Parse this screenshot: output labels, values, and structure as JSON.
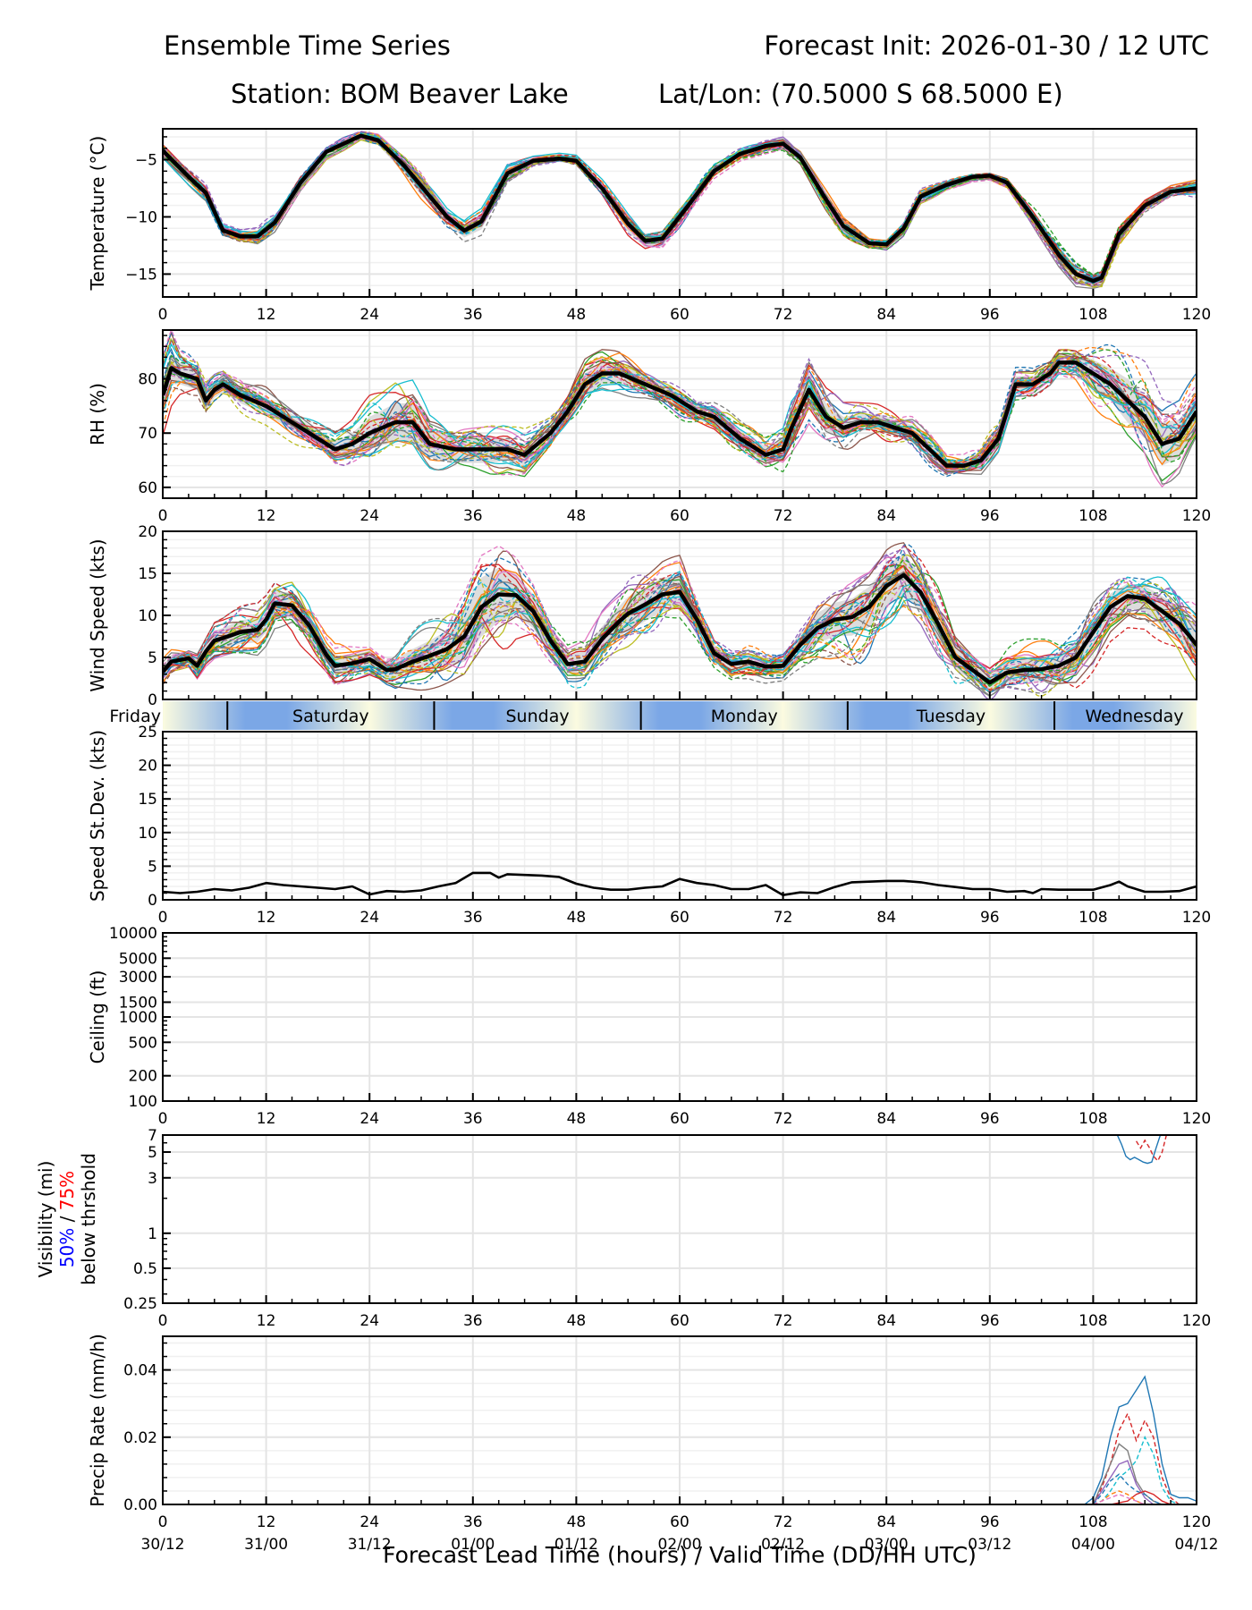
{
  "header": {
    "title_left": "Ensemble Time Series",
    "title_right": "Forecast Init: 2026-01-30 / 12 UTC",
    "station": "Station: BOM Beaver Lake",
    "latlon": "Lat/Lon: (70.5000 S 68.5000 E)"
  },
  "xaxis": {
    "label": "Forecast Lead Time (hours) / Valid Time (DD/HH UTC)",
    "range": [
      0,
      120
    ],
    "ticks": [
      0,
      12,
      24,
      36,
      48,
      60,
      72,
      84,
      96,
      108,
      120
    ],
    "tick_labels": [
      "0",
      "12",
      "24",
      "36",
      "48",
      "60",
      "72",
      "84",
      "96",
      "108",
      "120"
    ],
    "valid_labels": [
      "30/12",
      "31/00",
      "31/12",
      "01/00",
      "01/12",
      "02/00",
      "02/12",
      "03/00",
      "03/12",
      "04/00",
      "04/12"
    ]
  },
  "day_strip": {
    "days": [
      {
        "label": "Friday",
        "start": 0,
        "end": 7.5
      },
      {
        "label": "Saturday",
        "start": 7.5,
        "end": 31.5
      },
      {
        "label": "Sunday",
        "start": 31.5,
        "end": 55.5
      },
      {
        "label": "Monday",
        "start": 55.5,
        "end": 79.5
      },
      {
        "label": "Tuesday",
        "start": 79.5,
        "end": 103.5
      },
      {
        "label": "Wednesday",
        "start": 103.5,
        "end": 120
      }
    ],
    "night_color": "#7ba7e6",
    "day_color": "#fbfbe0"
  },
  "colors": {
    "mean": "#000000",
    "spread": "#d9d9d9",
    "members": [
      "#1f77b4",
      "#ff7f0e",
      "#2ca02c",
      "#d62728",
      "#9467bd",
      "#8c564b",
      "#e377c2",
      "#7f7f7f",
      "#bcbd22",
      "#17becf"
    ],
    "vis50": "#0000ff",
    "vis75": "#ff0000"
  },
  "chart_data": [
    {
      "type": "line",
      "id": "temperature",
      "ylabel": "Temperature (°C)",
      "ylim": [
        -17,
        -2.3
      ],
      "yticks": [
        -15,
        -10,
        -5
      ],
      "ytick_labels": [
        "−15",
        "−10",
        "−5"
      ],
      "grid": true,
      "x": [
        0,
        3,
        5,
        7,
        9,
        11,
        13,
        16,
        19,
        21,
        23,
        25,
        28,
        30,
        33,
        35,
        37,
        40,
        43,
        46,
        48,
        51,
        54,
        56,
        58,
        61,
        64,
        67,
        70,
        72,
        74,
        77,
        79,
        82,
        84,
        86,
        88,
        91,
        94,
        96,
        98,
        101,
        104,
        106,
        108,
        109,
        111,
        114,
        117,
        120
      ],
      "mean": [
        -4.2,
        -6.5,
        -7.9,
        -11.2,
        -11.7,
        -11.7,
        -10.5,
        -7.0,
        -4.3,
        -3.6,
        -2.9,
        -3.3,
        -5.5,
        -7.3,
        -10.0,
        -11.2,
        -10.4,
        -6.2,
        -5.1,
        -4.9,
        -5.1,
        -7.5,
        -10.6,
        -12.1,
        -11.9,
        -9.0,
        -6.0,
        -4.5,
        -3.8,
        -3.6,
        -4.8,
        -8.5,
        -10.8,
        -12.3,
        -12.4,
        -11.0,
        -8.2,
        -7.2,
        -6.5,
        -6.4,
        -7.0,
        -10.0,
        -13.3,
        -15.0,
        -15.6,
        -15.3,
        -11.5,
        -9.0,
        -7.8,
        -7.5
      ],
      "spread": [
        0.4,
        0.5,
        0.5,
        0.4,
        0.4,
        0.5,
        0.6,
        0.5,
        0.4,
        0.4,
        0.3,
        0.4,
        0.7,
        0.8,
        0.6,
        0.6,
        0.7,
        0.5,
        0.3,
        0.3,
        0.3,
        0.5,
        0.7,
        0.6,
        0.7,
        0.6,
        0.5,
        0.4,
        0.4,
        0.4,
        0.5,
        0.7,
        0.6,
        0.4,
        0.4,
        0.5,
        0.5,
        0.3,
        0.3,
        0.3,
        0.4,
        0.6,
        0.7,
        0.7,
        0.4,
        0.5,
        0.6,
        0.4,
        0.4,
        0.5
      ],
      "members_count": 30
    },
    {
      "type": "line",
      "id": "rh",
      "ylabel": "RH (%)",
      "ylim": [
        58,
        89
      ],
      "yticks": [
        60,
        70,
        80
      ],
      "ytick_labels": [
        "60",
        "70",
        "80"
      ],
      "grid": true,
      "x": [
        0,
        1,
        2,
        4,
        5,
        6,
        7,
        9,
        12,
        15,
        18,
        20,
        22,
        24,
        27,
        29,
        31,
        34,
        36,
        38,
        40,
        42,
        45,
        47,
        49,
        51,
        53,
        56,
        59,
        62,
        64,
        67,
        70,
        72,
        73,
        75,
        77,
        79,
        81,
        83,
        85,
        87,
        89,
        91,
        93,
        95,
        97,
        98,
        99,
        101,
        103,
        104,
        106,
        108,
        110,
        112,
        114,
        116,
        118,
        120
      ],
      "mean": [
        77,
        82,
        81,
        80,
        76,
        78,
        79,
        77,
        75,
        72,
        69,
        67,
        68,
        70,
        72,
        72,
        68,
        67,
        67,
        67,
        67,
        66,
        70,
        74,
        79,
        81,
        81,
        79,
        77,
        74,
        73,
        69,
        66,
        67,
        71,
        78,
        73,
        71,
        72,
        72,
        71,
        70,
        67,
        64,
        64,
        65,
        69,
        74,
        79,
        79,
        81,
        83,
        83,
        81,
        79,
        76,
        73,
        68,
        69,
        74
      ],
      "spread": [
        3,
        3,
        2,
        2,
        2,
        1.5,
        1.5,
        1.5,
        1.5,
        1.5,
        1.5,
        1.5,
        2,
        3,
        3.5,
        3.5,
        2.5,
        2.5,
        2.5,
        2.5,
        2,
        2,
        1.5,
        1.5,
        2,
        2,
        2,
        1.5,
        1.5,
        1.5,
        1.5,
        1.5,
        1.5,
        2,
        3,
        3,
        2.5,
        2,
        1.5,
        1.5,
        1.5,
        1.5,
        1.5,
        1,
        1,
        1.5,
        1.5,
        1.5,
        1.5,
        1.5,
        1.5,
        1.5,
        2,
        2.5,
        3,
        4,
        4,
        4,
        3.5,
        3
      ],
      "members_count": 30
    },
    {
      "type": "line",
      "id": "wind_speed",
      "ylabel": "Wind Speed (kts)",
      "ylim": [
        0,
        20
      ],
      "yticks": [
        0,
        5,
        10,
        15,
        20
      ],
      "ytick_labels": [
        "0",
        "5",
        "10",
        "15",
        "20"
      ],
      "grid": true,
      "x": [
        0,
        1,
        2,
        3,
        4,
        5,
        6,
        7,
        9,
        11,
        12,
        13,
        15,
        17,
        19,
        20,
        22,
        24,
        26,
        27,
        29,
        31,
        33,
        35,
        37,
        39,
        41,
        43,
        45,
        47,
        49,
        51,
        53,
        54,
        56,
        58,
        60,
        62,
        64,
        66,
        68,
        70,
        72,
        74,
        76,
        78,
        80,
        82,
        84,
        86,
        88,
        90,
        92,
        94,
        96,
        98,
        100,
        102,
        104,
        106,
        108,
        110,
        112,
        114,
        116,
        118,
        120
      ],
      "mean": [
        3.3,
        4.5,
        4.7,
        4.9,
        4.0,
        5.7,
        7.0,
        7.3,
        8.0,
        8.3,
        9.5,
        11.4,
        11.2,
        8.8,
        5.3,
        4.0,
        4.3,
        4.8,
        3.5,
        3.6,
        4.5,
        5.2,
        6.0,
        7.5,
        11.0,
        12.5,
        12.4,
        10.5,
        7.0,
        4.2,
        4.5,
        7.2,
        9.3,
        10.2,
        11.3,
        12.5,
        12.8,
        9.5,
        5.5,
        4.2,
        4.5,
        3.9,
        4.0,
        6.5,
        8.5,
        9.5,
        9.8,
        11.0,
        13.5,
        14.8,
        12.7,
        9.0,
        5.0,
        3.5,
        2.0,
        3.2,
        3.5,
        3.6,
        4.0,
        5.0,
        8.0,
        11.0,
        12.3,
        12.0,
        10.5,
        9.0,
        6.5
      ],
      "spread": [
        0.8,
        0.8,
        0.8,
        0.8,
        1,
        1,
        1.2,
        1.2,
        1.4,
        1.5,
        1.5,
        1.5,
        1.5,
        1.4,
        1,
        1,
        1,
        1,
        1,
        1.2,
        1.5,
        1.8,
        2.2,
        3,
        3.5,
        3.2,
        2.5,
        2,
        1.5,
        1.2,
        1.2,
        1.5,
        1.8,
        2,
        2,
        2,
        2,
        1.5,
        1,
        1,
        1,
        1,
        1,
        1.5,
        1.8,
        2,
        2.2,
        2.4,
        2.5,
        2.5,
        2.2,
        2,
        1.5,
        1.2,
        1,
        1.2,
        1.4,
        1.5,
        1.6,
        1.8,
        1.8,
        1.6,
        1.5,
        1.5,
        1.8,
        2,
        2
      ],
      "members_count": 30
    },
    {
      "type": "line",
      "id": "speed_stdev",
      "ylabel": "Speed St.Dev. (kts)",
      "ylim": [
        0,
        25
      ],
      "yticks": [
        0,
        5,
        10,
        15,
        20,
        25
      ],
      "ytick_labels": [
        "0",
        "5",
        "10",
        "15",
        "20",
        "25"
      ],
      "grid": true,
      "x": [
        0,
        2,
        4,
        6,
        8,
        10,
        12,
        14,
        16,
        18,
        20,
        22,
        24,
        26,
        28,
        30,
        32,
        34,
        36,
        38,
        39,
        40,
        42,
        44,
        46,
        48,
        50,
        52,
        54,
        56,
        58,
        60,
        62,
        64,
        66,
        68,
        70,
        72,
        74,
        76,
        78,
        80,
        84,
        86,
        88,
        90,
        92,
        94,
        96,
        98,
        100,
        101,
        102,
        104,
        106,
        108,
        110,
        111,
        112,
        114,
        116,
        118,
        120
      ],
      "values": [
        1.2,
        1.0,
        1.2,
        1.6,
        1.4,
        1.8,
        2.5,
        2.2,
        2.0,
        1.8,
        1.6,
        2.0,
        0.8,
        1.3,
        1.2,
        1.4,
        2.0,
        2.5,
        4.0,
        4.0,
        3.3,
        3.8,
        3.7,
        3.6,
        3.4,
        2.4,
        1.8,
        1.5,
        1.5,
        1.8,
        2.0,
        3.1,
        2.5,
        2.2,
        1.6,
        1.6,
        2.2,
        0.7,
        1.1,
        1.0,
        1.9,
        2.6,
        2.8,
        2.8,
        2.6,
        2.2,
        1.9,
        1.6,
        1.6,
        1.2,
        1.3,
        1.0,
        1.6,
        1.5,
        1.5,
        1.5,
        2.2,
        2.7,
        2.0,
        1.2,
        1.2,
        1.3,
        2.0
      ]
    },
    {
      "type": "line",
      "id": "ceiling",
      "ylabel": "Ceiling (ft)",
      "yscale": "log",
      "ylim": [
        100,
        10000
      ],
      "yticks": [
        100,
        200,
        500,
        1000,
        1500,
        3000,
        5000,
        10000
      ],
      "ytick_labels": [
        "100",
        "200",
        "500",
        "1000",
        "1500",
        "3000",
        "5000",
        "10000"
      ],
      "grid": true,
      "series": []
    },
    {
      "type": "line",
      "id": "visibility",
      "ylabel_lines": [
        "Visibility (mi)",
        "below thrshold"
      ],
      "ylabel_pct50": "50%",
      "ylabel_sep": " / ",
      "ylabel_pct75": "75%",
      "yscale": "log",
      "ylim": [
        0.25,
        7
      ],
      "yticks": [
        0.25,
        0.5,
        1,
        3,
        5,
        7
      ],
      "ytick_labels": [
        "0.25",
        "0.5",
        "1",
        "3",
        "5",
        "7"
      ],
      "grid": true,
      "series": [
        {
          "name": "50% below threshold",
          "style": "solid",
          "x": [
            110.8,
            111.3,
            111.8,
            112.3,
            112.8,
            113.3,
            113.8,
            114.3,
            114.8,
            115.3,
            115.8
          ],
          "values": [
            7.0,
            5.8,
            4.6,
            4.3,
            4.5,
            4.3,
            4.1,
            4.0,
            4.1,
            5.4,
            7.0
          ]
        },
        {
          "name": "75% below threshold",
          "style": "dashed",
          "x": [
            113.0,
            113.5,
            114.0,
            114.5,
            115.0,
            115.5,
            116.0,
            116.5
          ],
          "values": [
            6.2,
            5.4,
            6.3,
            5.5,
            4.6,
            4.2,
            5.0,
            7.0
          ]
        }
      ]
    },
    {
      "type": "line",
      "id": "precip_rate",
      "ylabel": "Precip Rate (mm/h)",
      "ylim": [
        0,
        0.05
      ],
      "yticks": [
        0,
        0.02,
        0.04
      ],
      "ytick_labels": [
        "0.00",
        "0.02",
        "0.04"
      ],
      "grid": true,
      "series": [
        {
          "name": "member-1",
          "style": "solid",
          "color_index": 0,
          "x": [
            107,
            108,
            109,
            110,
            111,
            112,
            113,
            114,
            115,
            116,
            117,
            118,
            119,
            120
          ],
          "values": [
            0,
            0.002,
            0.008,
            0.02,
            0.029,
            0.03,
            0.034,
            0.038,
            0.027,
            0.012,
            0.003,
            0.002,
            0.002,
            0.001
          ]
        },
        {
          "name": "member-2",
          "style": "dashed",
          "color_index": 3,
          "x": [
            108,
            109,
            110,
            111,
            112,
            113,
            114,
            115,
            116,
            117,
            118
          ],
          "values": [
            0,
            0.005,
            0.012,
            0.022,
            0.027,
            0.019,
            0.025,
            0.02,
            0.008,
            0.002,
            0
          ]
        },
        {
          "name": "member-3",
          "style": "dashed",
          "color_index": 9,
          "x": [
            108,
            109,
            110,
            111,
            112,
            113,
            114,
            115,
            116,
            117,
            118
          ],
          "values": [
            0,
            0.001,
            0.004,
            0.008,
            0.01,
            0.013,
            0.02,
            0.015,
            0.005,
            0.001,
            0
          ]
        },
        {
          "name": "member-4",
          "style": "solid",
          "color_index": 7,
          "x": [
            108,
            109,
            110,
            111,
            112,
            113,
            114,
            115,
            116
          ],
          "values": [
            0,
            0.006,
            0.012,
            0.018,
            0.016,
            0.007,
            0.003,
            0.001,
            0
          ]
        },
        {
          "name": "member-5",
          "style": "solid",
          "color_index": 4,
          "x": [
            108,
            109,
            110,
            111,
            112,
            113,
            114,
            115
          ],
          "values": [
            0,
            0.004,
            0.008,
            0.012,
            0.013,
            0.006,
            0.002,
            0
          ]
        },
        {
          "name": "member-6",
          "style": "dashed",
          "color_index": 0,
          "x": [
            108,
            109,
            110,
            111,
            112,
            113,
            114,
            115,
            116
          ],
          "values": [
            0,
            0.003,
            0.007,
            0.009,
            0.006,
            0.004,
            0.003,
            0.001,
            0
          ]
        },
        {
          "name": "member-7",
          "style": "solid",
          "color_index": 3,
          "x": [
            110,
            112,
            113,
            114,
            115,
            116,
            117
          ],
          "values": [
            0,
            0.001,
            0.003,
            0.004,
            0.003,
            0.001,
            0
          ]
        },
        {
          "name": "member-8",
          "style": "dashed",
          "color_index": 1,
          "x": [
            108,
            109,
            110,
            111,
            112,
            113,
            114
          ],
          "values": [
            0,
            0.001,
            0.003,
            0.004,
            0.003,
            0.001,
            0
          ]
        },
        {
          "name": "member-9",
          "style": "dashed",
          "color_index": 6,
          "x": [
            108,
            109,
            110,
            111,
            112,
            113,
            114
          ],
          "values": [
            0,
            0.001,
            0.002,
            0.003,
            0.002,
            0.001,
            0
          ]
        }
      ]
    }
  ]
}
